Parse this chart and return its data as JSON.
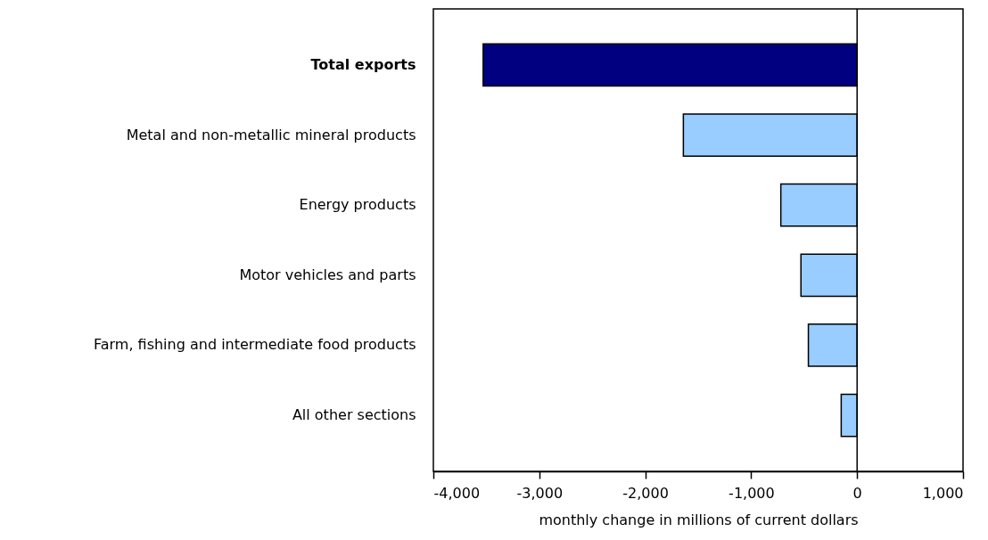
{
  "chart_data": {
    "type": "bar",
    "orientation": "horizontal",
    "xlabel": "monthly change in millions of current dollars",
    "categories": [
      "Total exports",
      "Metal and non-metallic mineral products",
      "Energy products",
      "Motor vehicles and parts",
      "Farm, fishing and intermediate food products",
      "All other sections"
    ],
    "values": [
      -3530,
      -1640,
      -720,
      -530,
      -460,
      -150
    ],
    "colors": [
      "#000080",
      "#99ccff",
      "#99ccff",
      "#99ccff",
      "#99ccff",
      "#99ccff"
    ],
    "xlim": [
      -4000,
      1000
    ],
    "xticks": [
      {
        "value": -4000,
        "label": "-4,000"
      },
      {
        "value": -3000,
        "label": "-3,000"
      },
      {
        "value": -2000,
        "label": "-2,000"
      },
      {
        "value": -1000,
        "label": "-1,000"
      },
      0,
      {
        "value": 1000,
        "label": "1,000"
      }
    ],
    "ref_lines": [
      {
        "axis": "x",
        "value": 0,
        "color": "#000000"
      }
    ],
    "grid": false
  }
}
